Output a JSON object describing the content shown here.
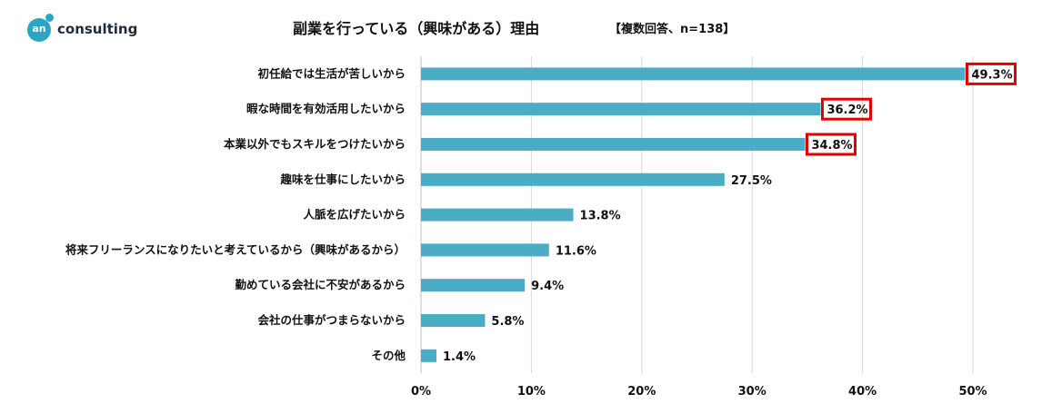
{
  "logo": {
    "mark": "an",
    "word": "consulting"
  },
  "title": "副業を行っている（興味がある）理由",
  "subtitle": "【複数回答、n=138】",
  "colors": {
    "bar": "#4bacc6",
    "highlight": "#e00000",
    "grid": "#d9d9d9",
    "logo": "#2aa6c4"
  },
  "chart_data": {
    "type": "bar",
    "orientation": "horizontal",
    "categories": [
      "初任給では生活が苦しいから",
      "暇な時間を有効活用したいから",
      "本業以外でもスキルをつけたいから",
      "趣味を仕事にしたいから",
      "人脈を広げたいから",
      "将来フリーランスになりたいと考えているから（興味があるから）",
      "勤めている会社に不安があるから",
      "会社の仕事がつまらないから",
      "その他"
    ],
    "values": [
      49.3,
      36.2,
      34.8,
      27.5,
      13.8,
      11.6,
      9.4,
      5.8,
      1.4
    ],
    "value_labels": [
      "49.3%",
      "36.2%",
      "34.8%",
      "27.5%",
      "13.8%",
      "11.6%",
      "9.4%",
      "5.8%",
      "1.4%"
    ],
    "highlighted": [
      true,
      true,
      true,
      false,
      false,
      false,
      false,
      false,
      false
    ],
    "xlim": [
      0,
      50
    ],
    "xticks": [
      0,
      10,
      20,
      30,
      40,
      50
    ],
    "xtick_labels": [
      "0%",
      "10%",
      "20%",
      "30%",
      "40%",
      "50%"
    ],
    "grid": true
  }
}
